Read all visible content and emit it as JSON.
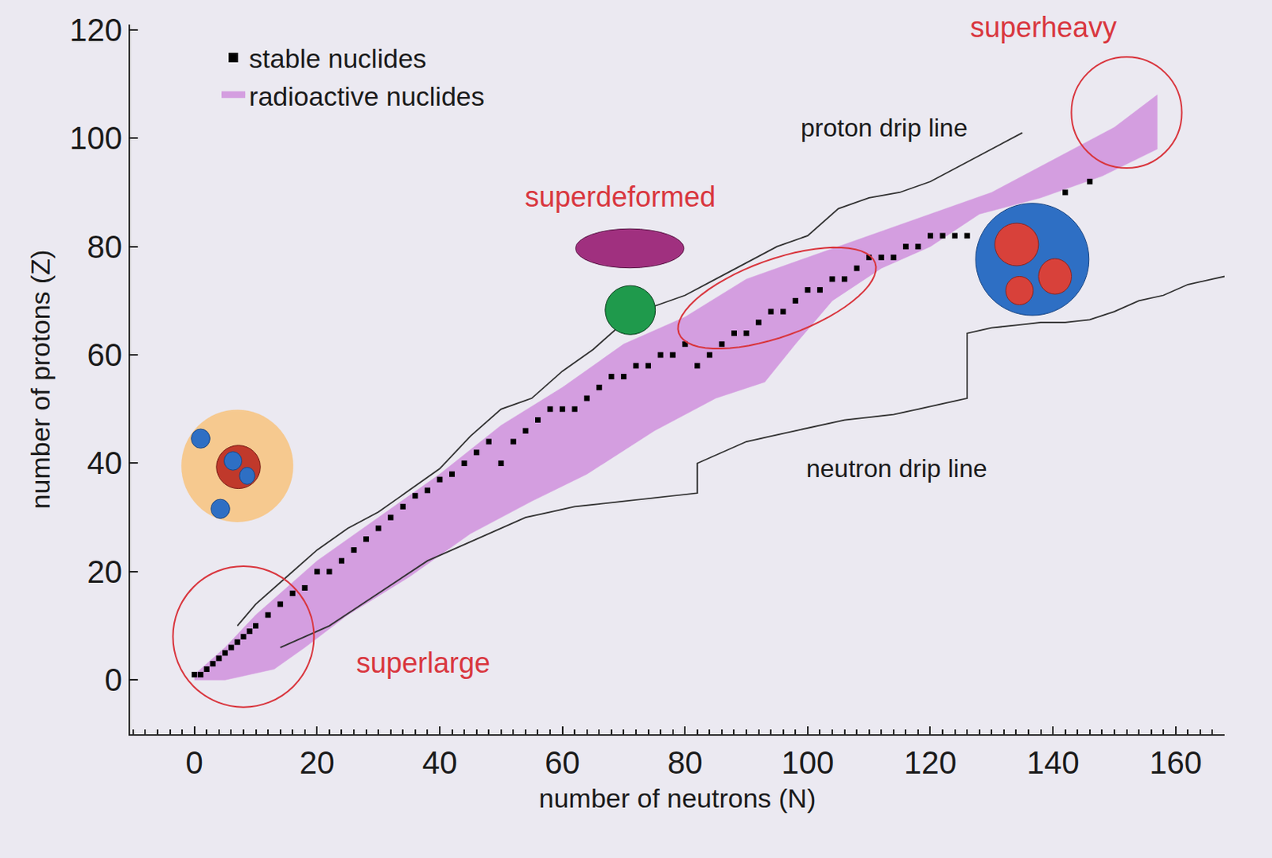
{
  "chart_data": {
    "type": "scatter",
    "xlabel": "number of neutrons (N)",
    "ylabel": "number of protons (Z)",
    "xlim": [
      -10.5,
      168
    ],
    "ylim": [
      -10,
      121
    ],
    "xticks": [
      0,
      20,
      40,
      60,
      80,
      100,
      120,
      140,
      160
    ],
    "yticks": [
      0,
      20,
      40,
      60,
      80,
      100,
      120
    ],
    "grid": false,
    "legend": "upper left",
    "series": [
      {
        "name": "stable nuclides",
        "type": "scatter",
        "marker": "square",
        "color": "#000000",
        "x": [
          0,
          1,
          2,
          3,
          4,
          5,
          6,
          7,
          8,
          9,
          10,
          12,
          14,
          16,
          18,
          20,
          22,
          24,
          26,
          28,
          30,
          32,
          34,
          36,
          38,
          40,
          42,
          44,
          46,
          48,
          50,
          52,
          54,
          56,
          58,
          60,
          62,
          64,
          66,
          68,
          70,
          72,
          74,
          76,
          78,
          80,
          82,
          84,
          86,
          88,
          90,
          92,
          94,
          96,
          98,
          100,
          102,
          104,
          106,
          108,
          110,
          112,
          114,
          116,
          118,
          120,
          122,
          124,
          126,
          142,
          146
        ],
        "y": [
          1,
          1,
          2,
          3,
          4,
          5,
          6,
          7,
          8,
          9,
          10,
          12,
          14,
          16,
          17,
          20,
          20,
          22,
          24,
          26,
          28,
          30,
          32,
          34,
          35,
          37,
          38,
          40,
          42,
          44,
          40,
          44,
          46,
          48,
          50,
          50,
          50,
          52,
          54,
          56,
          56,
          58,
          58,
          60,
          60,
          62,
          58,
          60,
          62,
          64,
          64,
          66,
          68,
          68,
          70,
          72,
          72,
          74,
          74,
          76,
          78,
          78,
          78,
          80,
          80,
          82,
          82,
          82,
          82,
          90,
          92
        ]
      },
      {
        "name": "radioactive nuclides",
        "type": "area",
        "color": "#d49ee0",
        "x": [
          0,
          5,
          10,
          15,
          20,
          30,
          40,
          50,
          60,
          70,
          80,
          90,
          100,
          110,
          120,
          130,
          140,
          150,
          157,
          157,
          148,
          138,
          128,
          120,
          112,
          104,
          98,
          93,
          85,
          75,
          64,
          55,
          45,
          35,
          25,
          18,
          13,
          5,
          0
        ],
        "y": [
          1,
          6,
          12,
          17,
          22,
          30,
          38,
          47,
          54,
          62,
          67,
          74,
          78,
          82,
          86,
          90,
          96,
          102,
          108,
          98,
          93,
          89,
          86,
          80,
          76,
          70,
          62,
          55,
          52,
          46,
          38,
          33,
          27,
          19,
          12,
          6,
          2,
          0,
          0
        ]
      }
    ],
    "lines": [
      {
        "name": "proton drip line",
        "color": "#333333",
        "label_x": 112.5,
        "label_y": 102,
        "x": [
          7,
          10,
          15,
          20,
          25,
          30,
          35,
          40,
          45,
          50,
          55,
          60,
          65,
          70,
          75,
          80,
          85,
          90,
          95,
          100,
          105,
          110,
          115,
          120,
          125,
          130,
          135
        ],
        "y": [
          10,
          14,
          19,
          24,
          28,
          31,
          35,
          39,
          45,
          50,
          52,
          57,
          61,
          66,
          69,
          71,
          74,
          77,
          80,
          82,
          87,
          89,
          90,
          92,
          95,
          98,
          101
        ]
      },
      {
        "name": "neutron drip line",
        "color": "#333333",
        "label_x": 114.5,
        "label_y": 39,
        "x": [
          14,
          18,
          22,
          26,
          30,
          34,
          38,
          42,
          46,
          50,
          54,
          58,
          62,
          66,
          70,
          74,
          78,
          82,
          82,
          86,
          90,
          94,
          98,
          102,
          106,
          110,
          114,
          118,
          122,
          126,
          126,
          130,
          134,
          138,
          142,
          146,
          150,
          154,
          158,
          162,
          166,
          168
        ],
        "y": [
          6,
          8,
          10,
          13,
          16,
          19,
          22,
          24,
          26,
          28,
          30,
          31,
          32,
          32.5,
          33,
          33.5,
          34,
          34.5,
          40,
          42,
          44,
          45,
          46,
          47,
          48,
          48.5,
          49,
          50,
          51,
          52,
          64,
          65,
          65.5,
          66,
          66,
          66.5,
          68,
          70,
          71,
          73,
          74,
          74.5
        ]
      }
    ],
    "regions": [
      {
        "label": "superlarge",
        "color": "#d9363e",
        "marker": "circle",
        "x": [
          -3.5,
          19.5
        ],
        "y": [
          -5,
          21
        ],
        "label_x": 37.3,
        "label_y": 3.2
      },
      {
        "label": "superdeformed",
        "color": "#d9363e",
        "marker": "ellipse",
        "x": [
          79,
          111
        ],
        "y": [
          64,
          77
        ],
        "label_x": 69.4,
        "label_y": 89.2
      },
      {
        "label": "superheavy",
        "color": "#d9363e",
        "marker": "circle",
        "x": [
          143,
          161
        ],
        "y": [
          94.5,
          115
        ],
        "label_x": 138.4,
        "label_y": 120.5
      }
    ]
  }
}
